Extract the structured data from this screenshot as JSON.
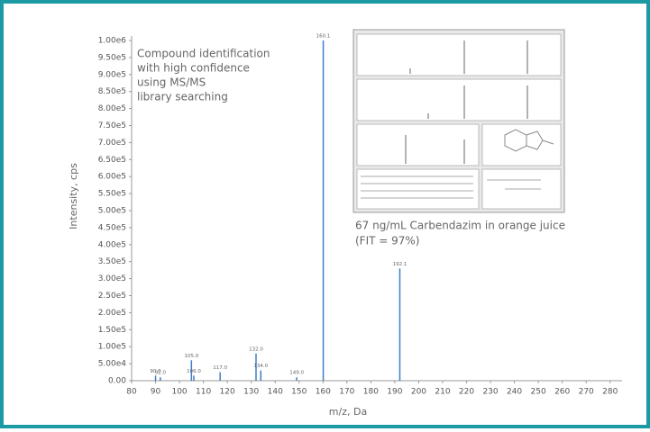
{
  "chart_data": {
    "type": "spectrum",
    "annotation": [
      "Compound identification",
      "with high confidence",
      "using MS/MS",
      "library searching"
    ],
    "caption": [
      "67 ng/mL Carbendazim in orange juice",
      "(FIT = 97%)"
    ],
    "ylabel": "Intensity, cps",
    "xlabel": "m/z, Da",
    "color": "#3d7fc6",
    "x": [
      90.0,
      92.0,
      105.0,
      106.0,
      117.0,
      132.0,
      134.0,
      149.0,
      160.1,
      192.1
    ],
    "x_labels": [
      "90.0",
      "92.0",
      "105.0",
      "106.0",
      "117.0",
      "132.0",
      "134.0",
      "149.0",
      "160.1",
      "192.1"
    ],
    "values": [
      15000,
      10000,
      60000,
      15000,
      25000,
      80000,
      30000,
      10000,
      1000000,
      330000
    ],
    "xlim": [
      80,
      285
    ],
    "xticks": [
      80,
      90,
      100,
      110,
      120,
      130,
      140,
      150,
      160,
      170,
      180,
      190,
      200,
      210,
      220,
      230,
      240,
      250,
      260,
      270,
      280
    ],
    "ylim": [
      0,
      1000000
    ],
    "yticks": [
      {
        "value": 0,
        "label": "0.00"
      },
      {
        "value": 50000,
        "label": "5.00e4"
      },
      {
        "value": 100000,
        "label": "1.00e5"
      },
      {
        "value": 150000,
        "label": "1.50e5"
      },
      {
        "value": 200000,
        "label": "2.00e5"
      },
      {
        "value": 250000,
        "label": "2.50e5"
      },
      {
        "value": 300000,
        "label": "3.00e5"
      },
      {
        "value": 350000,
        "label": "3.50e5"
      },
      {
        "value": 400000,
        "label": "4.00e5"
      },
      {
        "value": 450000,
        "label": "4.50e5"
      },
      {
        "value": 500000,
        "label": "5.00e5"
      },
      {
        "value": 550000,
        "label": "5.50e5"
      },
      {
        "value": 600000,
        "label": "6.00e5"
      },
      {
        "value": 650000,
        "label": "6.50e5"
      },
      {
        "value": 700000,
        "label": "7.00e5"
      },
      {
        "value": 750000,
        "label": "7.50e5"
      },
      {
        "value": 800000,
        "label": "8.00e5"
      },
      {
        "value": 850000,
        "label": "8.50e5"
      },
      {
        "value": 900000,
        "label": "9.00e5"
      },
      {
        "value": 950000,
        "label": "9.50e5"
      },
      {
        "value": 1000000,
        "label": "1.00e6"
      }
    ]
  }
}
